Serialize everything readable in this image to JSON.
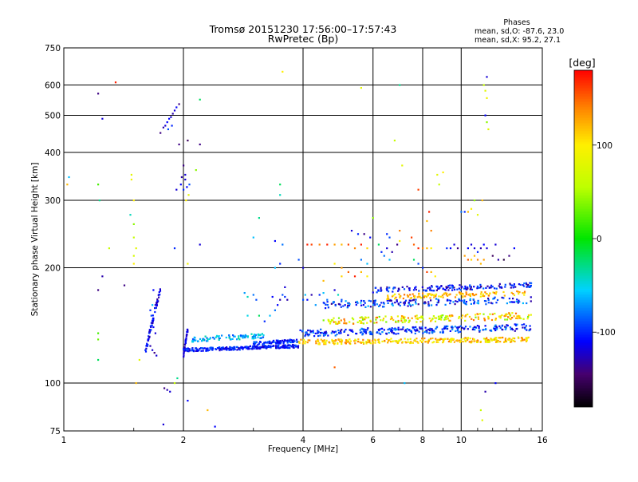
{
  "chart_data": {
    "type": "scatter",
    "title": "Tromsø 20151230 17:56:00–17:57:43",
    "subtitle": "RwPretec (Bp)",
    "xlabel": "Frequency [MHz]",
    "ylabel": "Stationary phase Virtual Height [km]",
    "x_scale": "log",
    "y_scale": "log",
    "xlim": [
      1,
      16
    ],
    "ylim": [
      75,
      750
    ],
    "x_ticks": [
      "1",
      "2",
      "4",
      "6",
      "8",
      "10",
      "16"
    ],
    "y_ticks": [
      "75",
      "100",
      "200",
      "300",
      "400",
      "500",
      "600",
      "750"
    ],
    "grid": true,
    "colorbar": {
      "label": "[deg]",
      "range": [
        -180,
        180
      ],
      "ticks": [
        "100",
        "0",
        "-100"
      ]
    },
    "stats": {
      "title": "Phases",
      "line_o": "mean, sd,O: -87.6, 23.0",
      "line_x": "mean, sd,X:  95.2, 27.1"
    },
    "series": [
      {
        "points": [
          [
            1.03,
            345,
            -60
          ],
          [
            1.02,
            330,
            120
          ],
          [
            1.22,
            330,
            20
          ],
          [
            1.23,
            300,
            -30
          ],
          [
            1.25,
            490,
            -120
          ],
          [
            1.22,
            570,
            -140
          ],
          [
            1.35,
            610,
            170
          ],
          [
            1.22,
            175,
            -140
          ],
          [
            1.25,
            190,
            -130
          ],
          [
            1.22,
            135,
            20
          ],
          [
            1.22,
            130,
            30
          ],
          [
            1.22,
            115,
            -20
          ],
          [
            1.3,
            225,
            60
          ],
          [
            1.48,
            350,
            80
          ],
          [
            1.48,
            340,
            90
          ],
          [
            1.5,
            300,
            100
          ],
          [
            1.5,
            260,
            40
          ],
          [
            1.5,
            240,
            60
          ],
          [
            1.52,
            225,
            80
          ],
          [
            1.5,
            215,
            70
          ],
          [
            1.5,
            205,
            100
          ],
          [
            1.42,
            180,
            -140
          ],
          [
            1.55,
            115,
            80
          ],
          [
            1.52,
            100,
            120
          ],
          [
            1.47,
            275,
            -40
          ],
          [
            1.68,
            175,
            -110
          ],
          [
            1.7,
            160,
            -120
          ],
          [
            1.65,
            155,
            -100
          ],
          [
            1.66,
            150,
            -90
          ],
          [
            1.67,
            145,
            -80
          ],
          [
            1.68,
            140,
            -110
          ],
          [
            1.7,
            135,
            -120
          ],
          [
            1.65,
            125,
            -130
          ],
          [
            1.67,
            122,
            -120
          ],
          [
            1.69,
            120,
            -140
          ],
          [
            1.71,
            118,
            -120
          ],
          [
            1.67,
            160,
            -60
          ],
          [
            1.79,
            97,
            -140
          ],
          [
            1.82,
            96,
            -130
          ],
          [
            1.85,
            95,
            -120
          ],
          [
            1.78,
            78,
            -120
          ],
          [
            1.9,
            100,
            60
          ],
          [
            1.93,
            103,
            -30
          ],
          [
            1.75,
            450,
            -140
          ],
          [
            1.78,
            465,
            -130
          ],
          [
            1.8,
            470,
            -120
          ],
          [
            1.82,
            480,
            -110
          ],
          [
            1.84,
            490,
            -110
          ],
          [
            1.86,
            495,
            -120
          ],
          [
            1.88,
            505,
            -130
          ],
          [
            1.9,
            515,
            -120
          ],
          [
            1.92,
            525,
            -110
          ],
          [
            1.95,
            535,
            -140
          ],
          [
            1.87,
            470,
            -100
          ],
          [
            1.83,
            460,
            -90
          ],
          [
            1.9,
            225,
            -100
          ],
          [
            1.92,
            320,
            -120
          ],
          [
            1.97,
            330,
            -110
          ],
          [
            1.98,
            345,
            -130
          ],
          [
            2.0,
            370,
            -140
          ],
          [
            2.02,
            340,
            -120
          ],
          [
            2.04,
            325,
            -110
          ],
          [
            2.06,
            310,
            80
          ],
          [
            2.0,
            320,
            -100
          ],
          [
            2.02,
            350,
            -120
          ],
          [
            2.07,
            330,
            -90
          ],
          [
            2.03,
            300,
            100
          ],
          [
            2.05,
            205,
            90
          ],
          [
            1.95,
            420,
            -140
          ],
          [
            2.05,
            430,
            -150
          ],
          [
            2.2,
            420,
            -140
          ],
          [
            2.2,
            550,
            -20
          ],
          [
            2.2,
            230,
            -120
          ],
          [
            2.3,
            85,
            120
          ],
          [
            2.4,
            77,
            -110
          ],
          [
            2.05,
            90,
            -110
          ],
          [
            2.15,
            360,
            40
          ],
          [
            3.55,
            650,
            100
          ],
          [
            3.5,
            330,
            -20
          ],
          [
            3.5,
            310,
            -40
          ],
          [
            3.1,
            270,
            -30
          ],
          [
            3.0,
            240,
            -60
          ],
          [
            3.55,
            230,
            -80
          ],
          [
            3.4,
            235,
            -110
          ],
          [
            3.5,
            205,
            -100
          ],
          [
            3.4,
            200,
            -60
          ],
          [
            3.6,
            178,
            -120
          ],
          [
            3.55,
            170,
            -90
          ],
          [
            3.5,
            165,
            -130
          ],
          [
            3.45,
            160,
            -110
          ],
          [
            3.4,
            155,
            -80
          ],
          [
            3.0,
            170,
            -80
          ],
          [
            2.9,
            168,
            -40
          ],
          [
            2.85,
            172,
            -70
          ],
          [
            3.05,
            165,
            -90
          ],
          [
            3.3,
            150,
            -60
          ],
          [
            3.2,
            145,
            -100
          ],
          [
            3.1,
            150,
            -20
          ],
          [
            2.9,
            150,
            -50
          ],
          [
            3.35,
            168,
            -110
          ],
          [
            3.6,
            168,
            -100
          ],
          [
            3.65,
            165,
            -130
          ],
          [
            4.0,
            165,
            -90
          ],
          [
            4.05,
            170,
            -60
          ],
          [
            4.1,
            165,
            -110
          ],
          [
            4.2,
            170,
            -130
          ],
          [
            4.4,
            170,
            -100
          ],
          [
            4.5,
            172,
            -60
          ],
          [
            4.6,
            165,
            -80
          ],
          [
            4.8,
            175,
            -120
          ],
          [
            4.9,
            170,
            -40
          ],
          [
            5.0,
            165,
            -90
          ],
          [
            5.1,
            160,
            -110
          ],
          [
            4.3,
            160,
            -70
          ],
          [
            3.9,
            210,
            -90
          ],
          [
            4.0,
            200,
            -120
          ],
          [
            4.1,
            230,
            170
          ],
          [
            4.2,
            230,
            160
          ],
          [
            4.4,
            230,
            140
          ],
          [
            4.6,
            230,
            170
          ],
          [
            4.8,
            230,
            130
          ],
          [
            5.0,
            230,
            120
          ],
          [
            5.2,
            230,
            160
          ],
          [
            5.4,
            225,
            140
          ],
          [
            5.6,
            230,
            170
          ],
          [
            5.8,
            225,
            110
          ],
          [
            4.8,
            205,
            100
          ],
          [
            5.0,
            200,
            130
          ],
          [
            5.2,
            195,
            150
          ],
          [
            5.4,
            190,
            170
          ],
          [
            5.6,
            195,
            120
          ],
          [
            5.8,
            190,
            100
          ],
          [
            5.3,
            250,
            -120
          ],
          [
            5.5,
            245,
            -100
          ],
          [
            5.7,
            245,
            -140
          ],
          [
            5.9,
            240,
            -110
          ],
          [
            5.6,
            210,
            -80
          ],
          [
            5.8,
            205,
            -60
          ],
          [
            6.0,
            270,
            40
          ],
          [
            4.8,
            110,
            150
          ],
          [
            5.6,
            590,
            80
          ],
          [
            4.5,
            185,
            120
          ],
          [
            5.0,
            190,
            110
          ],
          [
            6.3,
            220,
            -100
          ],
          [
            6.5,
            225,
            -120
          ],
          [
            6.7,
            220,
            -130
          ],
          [
            6.9,
            230,
            -140
          ],
          [
            6.4,
            215,
            -80
          ],
          [
            6.6,
            210,
            -60
          ],
          [
            6.2,
            230,
            -20
          ],
          [
            6.5,
            245,
            -100
          ],
          [
            6.6,
            240,
            -90
          ],
          [
            7.0,
            235,
            100
          ],
          [
            7.0,
            250,
            140
          ],
          [
            6.8,
            430,
            60
          ],
          [
            7.1,
            370,
            80
          ],
          [
            7.2,
            100,
            -60
          ],
          [
            7.0,
            600,
            -30
          ],
          [
            7.5,
            240,
            160
          ],
          [
            7.6,
            230,
            150
          ],
          [
            7.8,
            225,
            170
          ],
          [
            8.0,
            225,
            140
          ],
          [
            8.2,
            225,
            120
          ],
          [
            8.4,
            225,
            100
          ],
          [
            7.6,
            210,
            -20
          ],
          [
            7.8,
            205,
            -90
          ],
          [
            8.0,
            200,
            -100
          ],
          [
            8.2,
            195,
            160
          ],
          [
            8.4,
            195,
            120
          ],
          [
            8.6,
            190,
            100
          ],
          [
            7.8,
            320,
            160
          ],
          [
            8.3,
            280,
            170
          ],
          [
            8.4,
            250,
            140
          ],
          [
            8.2,
            265,
            120
          ],
          [
            9.0,
            355,
            100
          ],
          [
            8.7,
            350,
            80
          ],
          [
            8.8,
            330,
            60
          ],
          [
            9.2,
            225,
            -100
          ],
          [
            9.4,
            225,
            -110
          ],
          [
            9.6,
            230,
            -120
          ],
          [
            9.8,
            225,
            -140
          ],
          [
            10.0,
            280,
            -80
          ],
          [
            10.2,
            280,
            -100
          ],
          [
            10.4,
            280,
            120
          ],
          [
            10.6,
            285,
            100
          ],
          [
            10.8,
            300,
            40
          ],
          [
            11.0,
            275,
            80
          ],
          [
            10.4,
            225,
            -110
          ],
          [
            10.6,
            230,
            -120
          ],
          [
            10.8,
            225,
            -120
          ],
          [
            11.0,
            220,
            -100
          ],
          [
            11.2,
            225,
            -130
          ],
          [
            11.4,
            230,
            -110
          ],
          [
            11.6,
            225,
            -120
          ],
          [
            10.2,
            215,
            130
          ],
          [
            10.4,
            210,
            150
          ],
          [
            10.6,
            210,
            110
          ],
          [
            10.8,
            215,
            120
          ],
          [
            11.0,
            210,
            140
          ],
          [
            11.2,
            205,
            120
          ],
          [
            11.4,
            210,
            130
          ],
          [
            12.0,
            215,
            -150
          ],
          [
            12.4,
            210,
            -130
          ],
          [
            12.8,
            210,
            -160
          ],
          [
            13.2,
            215,
            -140
          ],
          [
            13.6,
            225,
            -110
          ],
          [
            12.2,
            230,
            -120
          ],
          [
            11.6,
            630,
            -120
          ],
          [
            11.4,
            600,
            60
          ],
          [
            11.5,
            580,
            80
          ],
          [
            11.6,
            555,
            90
          ],
          [
            11.5,
            500,
            -110
          ],
          [
            11.6,
            480,
            40
          ],
          [
            11.7,
            460,
            80
          ],
          [
            11.3,
            300,
            120
          ],
          [
            11.2,
            85,
            60
          ],
          [
            11.3,
            80,
            80
          ],
          [
            12.2,
            100,
            -110
          ],
          [
            11.5,
            95,
            -130
          ]
        ]
      }
    ]
  }
}
